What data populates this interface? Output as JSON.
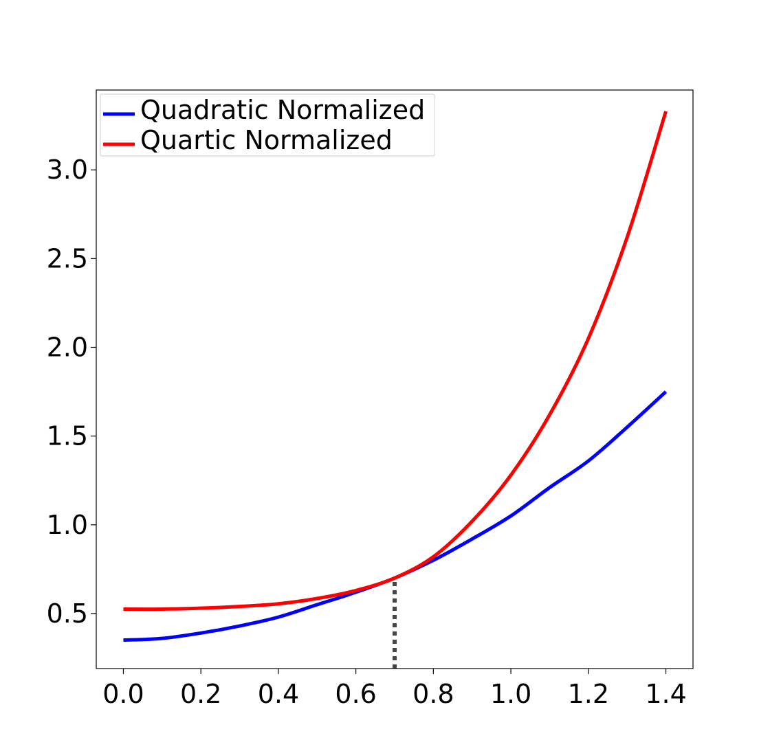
{
  "chart_data": {
    "type": "line",
    "title": "",
    "xlabel": "",
    "ylabel": "",
    "xlim": [
      -0.07,
      1.47
    ],
    "ylim": [
      0.19,
      3.45
    ],
    "xticks": [
      0.0,
      0.2,
      0.4,
      0.6,
      0.8,
      1.0,
      1.2,
      1.4
    ],
    "xtick_labels": [
      "0.0",
      "0.2",
      "0.4",
      "0.6",
      "0.8",
      "1.0",
      "1.2",
      "1.4"
    ],
    "yticks": [
      0.5,
      1.0,
      1.5,
      2.0,
      2.5,
      3.0
    ],
    "ytick_labels": [
      "0.5",
      "1.0",
      "1.5",
      "2.0",
      "2.5",
      "3.0"
    ],
    "grid": false,
    "legend": {
      "placement": "top-left"
    },
    "series": [
      {
        "name": "Quadratic Normalized",
        "color": "#0000ff",
        "x": [
          0.0,
          0.1,
          0.2,
          0.3,
          0.4,
          0.5,
          0.6,
          0.7,
          0.8,
          0.9,
          1.0,
          1.1,
          1.2,
          1.3,
          1.4
        ],
        "y": [
          0.35,
          0.36,
          0.39,
          0.43,
          0.48,
          0.55,
          0.62,
          0.7,
          0.8,
          0.92,
          1.05,
          1.21,
          1.36,
          1.55,
          1.75
        ]
      },
      {
        "name": "Quartic Normalized",
        "color": "#ff0000",
        "x": [
          0.0,
          0.1,
          0.2,
          0.3,
          0.4,
          0.5,
          0.6,
          0.7,
          0.8,
          0.9,
          1.0,
          1.1,
          1.2,
          1.3,
          1.4
        ],
        "y": [
          0.525,
          0.525,
          0.53,
          0.54,
          0.555,
          0.585,
          0.63,
          0.7,
          0.82,
          1.02,
          1.28,
          1.62,
          2.05,
          2.62,
          3.33
        ]
      }
    ],
    "annotations": [
      {
        "type": "vline",
        "style": "dotted",
        "color": "#444444",
        "x": 0.7,
        "y_from": 0.19,
        "y_to": 0.7
      }
    ]
  }
}
